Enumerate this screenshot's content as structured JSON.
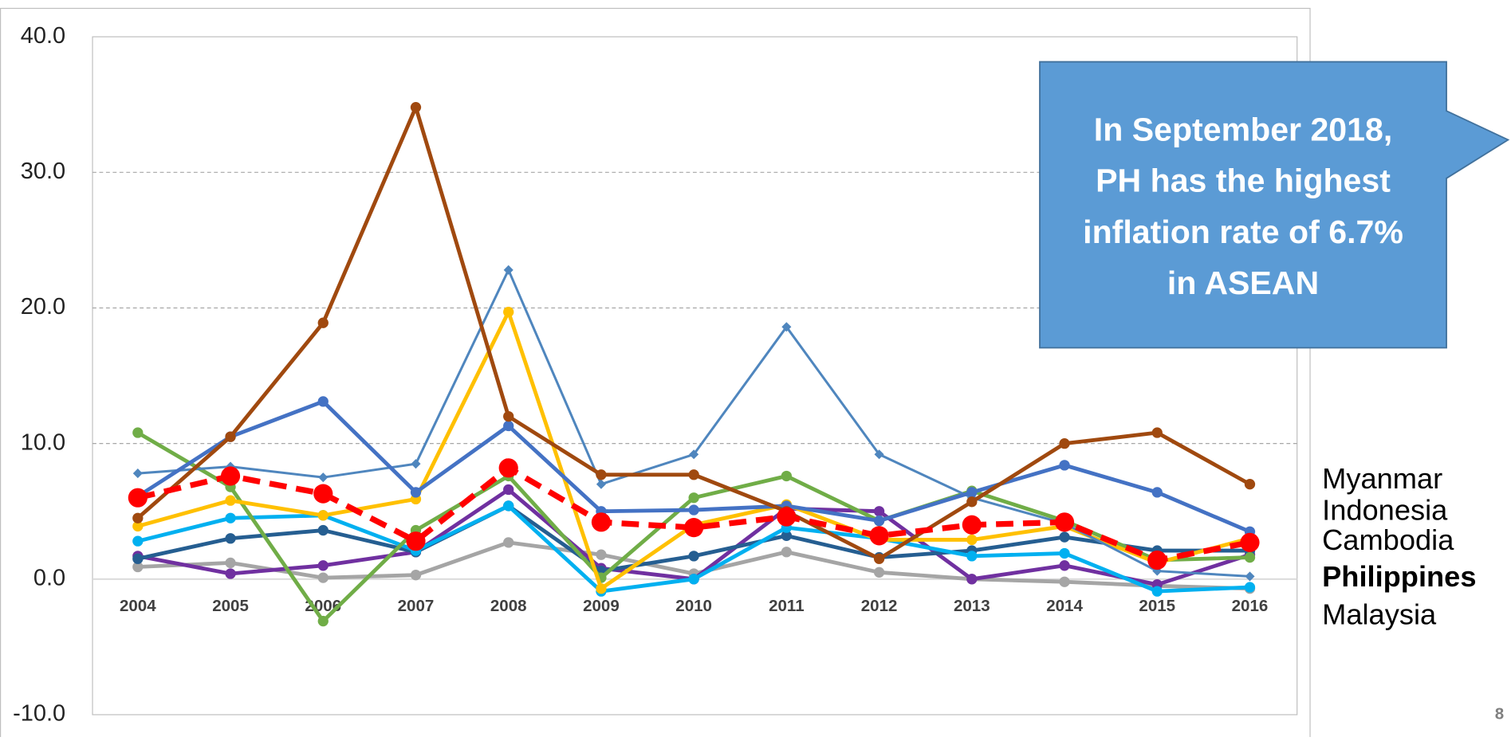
{
  "chart_data": {
    "type": "line",
    "categories": [
      "2004",
      "2005",
      "2006",
      "2007",
      "2008",
      "2009",
      "2010",
      "2011",
      "2012",
      "2013",
      "2014",
      "2015",
      "2016"
    ],
    "ylim": [
      -10,
      40
    ],
    "yticks": [
      {
        "value": -10,
        "label": "-10.0"
      },
      {
        "value": 0,
        "label": "0.0"
      },
      {
        "value": 10,
        "label": "10.0"
      },
      {
        "value": 20,
        "label": "20.0"
      },
      {
        "value": 30,
        "label": "30.0"
      },
      {
        "value": 40,
        "label": "40.0"
      }
    ],
    "grid": true,
    "series": [
      {
        "color": "#a5a5a5",
        "marker": "circle",
        "values": [
          0.9,
          1.2,
          0.1,
          0.3,
          2.7,
          1.8,
          0.4,
          2.0,
          0.5,
          0.0,
          -0.2,
          -0.5,
          -0.7
        ]
      },
      {
        "color": "#7030a0",
        "marker": "circle",
        "values": [
          1.7,
          0.4,
          1.0,
          2.0,
          6.6,
          0.8,
          0.0,
          5.2,
          5.0,
          0.0,
          1.0,
          -0.4,
          1.8
        ]
      },
      {
        "color": "#255e91",
        "marker": "circle",
        "values": [
          1.5,
          3.0,
          3.6,
          2.0,
          5.4,
          0.6,
          1.7,
          3.2,
          1.6,
          2.1,
          3.1,
          2.1,
          2.1
        ]
      },
      {
        "color": "#00b0f0",
        "marker": "circle",
        "values": [
          2.8,
          4.5,
          4.7,
          2.1,
          5.4,
          -0.9,
          0.0,
          3.8,
          3.0,
          1.7,
          1.9,
          -0.9,
          -0.6
        ]
      },
      {
        "color": "#70ad47",
        "marker": "circle",
        "values": [
          10.8,
          6.8,
          -3.1,
          3.6,
          7.6,
          0.1,
          6.0,
          7.6,
          4.3,
          6.5,
          4.3,
          1.4,
          1.6
        ]
      },
      {
        "color": "#ffc000",
        "marker": "circle",
        "values": [
          3.9,
          5.8,
          4.7,
          5.9,
          19.7,
          -0.7,
          4.0,
          5.5,
          2.9,
          2.9,
          3.9,
          1.2,
          3.0
        ]
      },
      {
        "color": "#4f86be",
        "marker": "diamond",
        "values": [
          7.8,
          8.3,
          7.5,
          8.5,
          22.8,
          7.0,
          9.2,
          18.6,
          9.2,
          6.0,
          4.1,
          0.6,
          0.2
        ]
      },
      {
        "color": "#4472c4",
        "marker": "circle",
        "values": [
          6.1,
          10.5,
          13.1,
          6.4,
          11.3,
          5.0,
          5.1,
          5.4,
          4.3,
          6.4,
          8.4,
          6.4,
          3.5
        ]
      },
      {
        "color": "#a0490f",
        "marker": "circle",
        "values": [
          4.5,
          10.5,
          18.9,
          34.8,
          12.0,
          7.7,
          7.7,
          5.0,
          1.5,
          5.7,
          10.0,
          10.8,
          7.0
        ]
      },
      {
        "color": "#ff0000",
        "marker": "big-circle",
        "dashed": true,
        "values": [
          6.0,
          7.6,
          6.3,
          2.8,
          8.2,
          4.2,
          3.8,
          4.6,
          3.2,
          4.0,
          4.2,
          1.4,
          2.7
        ]
      }
    ],
    "legend_labels": [
      "Myanmar",
      "Indonesia",
      "Cambodia",
      "Philippines",
      "Malaysia"
    ],
    "highlight_label": "Philippines",
    "callout": [
      "In September 2018,",
      "PH has the highest",
      "inflation rate of 6.7%",
      "in ASEAN"
    ],
    "page_number": "8"
  }
}
